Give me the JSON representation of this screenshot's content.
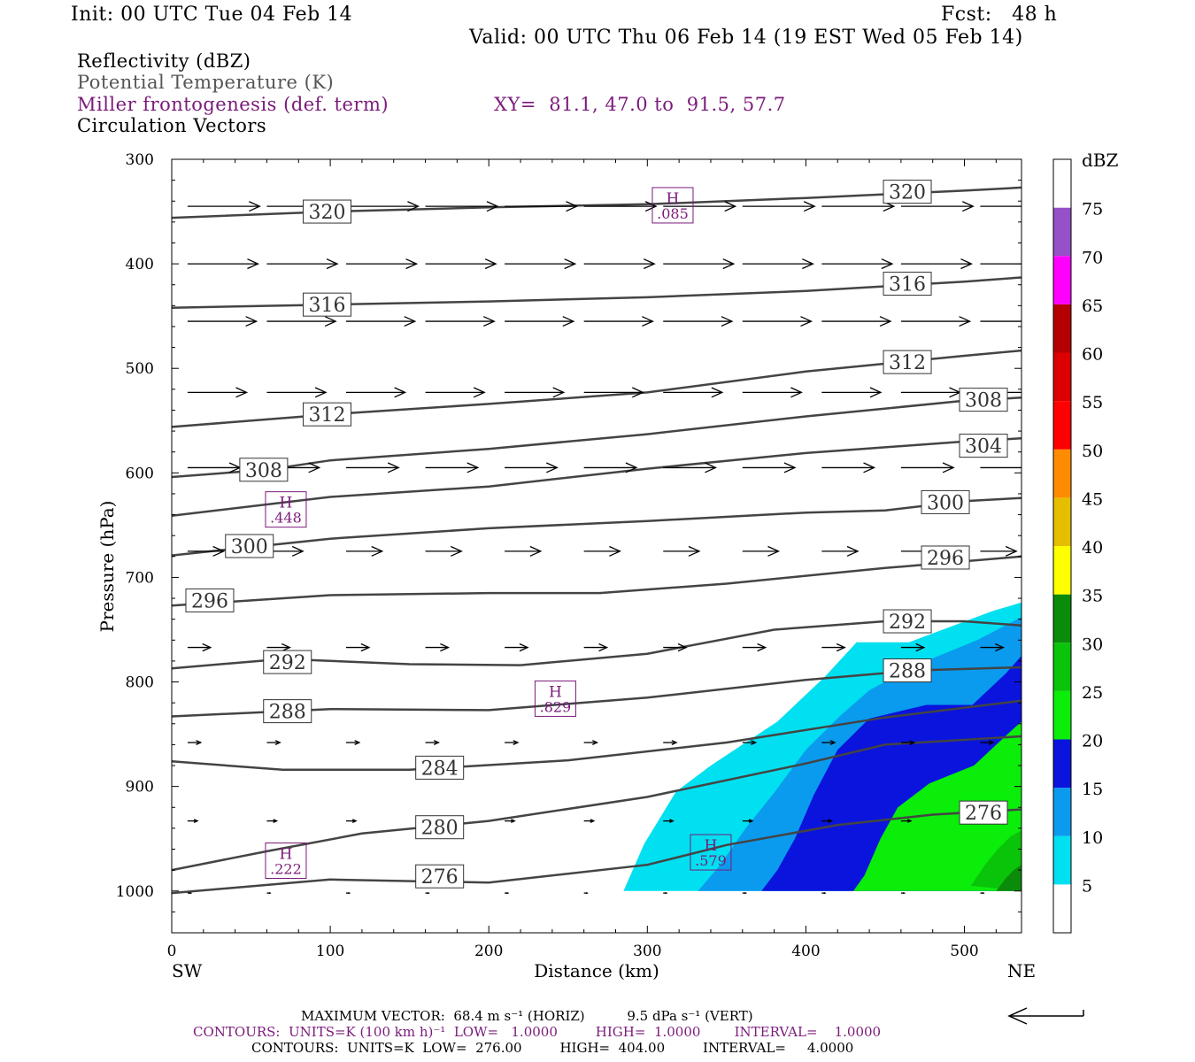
{
  "header": {
    "init": "Init: 00 UTC Tue 04 Feb 14",
    "fcst": "Fcst:   48 h",
    "valid": "Valid: 00 UTC Thu 06 Feb 14 (19 EST Wed 05 Feb 14)",
    "field1": "Reflectivity (dBZ)",
    "field2": "Potential Temperature (K)",
    "field3": "Miller frontogenesis (def. term)",
    "xy": "XY=  81.1, 47.0 to  91.5, 57.7",
    "field4": "Circulation Vectors"
  },
  "footer": {
    "max_vector": "MAXIMUM VECTOR:  68.4 m s⁻¹ (HORIZ)          9.5 dPa s⁻¹ (VERT)",
    "contours1": "CONTOURS:  UNITS=K (100 km h)⁻¹  LOW=   1.0000         HIGH=  1.0000        INTERVAL=    1.0000",
    "contours2": "CONTOURS:  UNITS=K  LOW=  276.00         HIGH=  404.00         INTERVAL=     4.0000"
  },
  "colors": {
    "theta": "#444444",
    "frontogenesis": "#7a1a7a",
    "vector": "#000000"
  },
  "chart_data": {
    "type": "cross-section",
    "xlabel": "Distance (km)",
    "ylabel": "Pressure (hPa)",
    "xlim": [
      0,
      536
    ],
    "ylim": [
      1040,
      300
    ],
    "y_log": false,
    "x_ticks": [
      0,
      100,
      200,
      300,
      400,
      500
    ],
    "y_ticks": [
      300,
      400,
      500,
      600,
      700,
      800,
      900,
      1000
    ],
    "x_end_labels": {
      "left": "SW",
      "right": "NE"
    },
    "colorbar": {
      "title": "dBZ",
      "levels": [
        5,
        10,
        15,
        20,
        25,
        30,
        35,
        40,
        45,
        50,
        55,
        60,
        65,
        70,
        75
      ],
      "colors": [
        "#ffffff",
        "#00e0f0",
        "#0a9bee",
        "#0a14dc",
        "#0aee0a",
        "#0ac40a",
        "#0a8c0a",
        "#ffff00",
        "#e6be00",
        "#ff8c00",
        "#ff0000",
        "#dd0000",
        "#b40000",
        "#ff00ff",
        "#9650c8",
        "#ffffff"
      ]
    },
    "reflectivity_regions": [
      {
        "dbz": 5,
        "points": [
          [
            285,
            1000
          ],
          [
            298,
            955
          ],
          [
            318,
            905
          ],
          [
            340,
            880
          ],
          [
            382,
            838
          ],
          [
            412,
            795
          ],
          [
            432,
            762
          ],
          [
            465,
            762
          ],
          [
            518,
            732
          ],
          [
            536,
            724
          ],
          [
            536,
            1000
          ]
        ]
      },
      {
        "dbz": 10,
        "points": [
          [
            332,
            1000
          ],
          [
            346,
            975
          ],
          [
            362,
            940
          ],
          [
            380,
            906
          ],
          [
            400,
            865
          ],
          [
            422,
            832
          ],
          [
            440,
            808
          ],
          [
            468,
            785
          ],
          [
            508,
            760
          ],
          [
            536,
            738
          ],
          [
            536,
            1000
          ]
        ]
      },
      {
        "dbz": 15,
        "points": [
          [
            372,
            1000
          ],
          [
            382,
            980
          ],
          [
            393,
            950
          ],
          [
            405,
            908
          ],
          [
            420,
            865
          ],
          [
            440,
            835
          ],
          [
            476,
            822
          ],
          [
            505,
            822
          ],
          [
            526,
            792
          ],
          [
            536,
            775
          ],
          [
            536,
            1000
          ]
        ]
      },
      {
        "dbz": 20,
        "points": [
          [
            430,
            1000
          ],
          [
            437,
            985
          ],
          [
            447,
            950
          ],
          [
            458,
            920
          ],
          [
            478,
            897
          ],
          [
            506,
            880
          ],
          [
            530,
            846
          ],
          [
            536,
            838
          ],
          [
            536,
            1000
          ]
        ]
      },
      {
        "dbz": 25,
        "points": [
          [
            504,
            995
          ],
          [
            513,
            975
          ],
          [
            521,
            960
          ],
          [
            529,
            948
          ],
          [
            536,
            942
          ],
          [
            536,
            1000
          ]
        ]
      },
      {
        "dbz": 30,
        "points": [
          [
            520,
            1000
          ],
          [
            526,
            988
          ],
          [
            531,
            980
          ],
          [
            536,
            975
          ],
          [
            536,
            1000
          ]
        ]
      }
    ],
    "theta_contours": [
      {
        "value": 320,
        "points": [
          [
            0,
            356
          ],
          [
            100,
            350
          ],
          [
            200,
            346
          ],
          [
            300,
            343
          ],
          [
            400,
            337
          ],
          [
            500,
            330
          ],
          [
            536,
            327
          ]
        ],
        "labels": [
          [
            98,
            350
          ],
          [
            464,
            331
          ]
        ]
      },
      {
        "value": 316,
        "points": [
          [
            0,
            442
          ],
          [
            100,
            439
          ],
          [
            200,
            436
          ],
          [
            300,
            432
          ],
          [
            400,
            426
          ],
          [
            500,
            417
          ],
          [
            536,
            413
          ]
        ],
        "labels": [
          [
            98,
            439
          ],
          [
            464,
            419
          ]
        ]
      },
      {
        "value": 312,
        "points": [
          [
            0,
            556
          ],
          [
            100,
            544
          ],
          [
            200,
            534
          ],
          [
            300,
            523
          ],
          [
            400,
            503
          ],
          [
            500,
            488
          ],
          [
            536,
            483
          ]
        ],
        "labels": [
          [
            98,
            544
          ],
          [
            464,
            494
          ]
        ]
      },
      {
        "value": 308,
        "points": [
          [
            0,
            604
          ],
          [
            60,
            597
          ],
          [
            100,
            588
          ],
          [
            200,
            577
          ],
          [
            300,
            563
          ],
          [
            400,
            546
          ],
          [
            500,
            531
          ],
          [
            536,
            528
          ]
        ],
        "labels": [
          [
            58,
            597
          ],
          [
            512,
            530
          ]
        ]
      },
      {
        "value": 304,
        "points": [
          [
            0,
            641
          ],
          [
            100,
            623
          ],
          [
            200,
            613
          ],
          [
            300,
            596
          ],
          [
            400,
            581
          ],
          [
            500,
            570
          ],
          [
            536,
            567
          ]
        ],
        "labels": [
          [
            512,
            574
          ]
        ]
      },
      {
        "value": 300,
        "points": [
          [
            0,
            679
          ],
          [
            100,
            663
          ],
          [
            200,
            653
          ],
          [
            300,
            646
          ],
          [
            400,
            638
          ],
          [
            450,
            636
          ],
          [
            500,
            627
          ],
          [
            536,
            624
          ]
        ],
        "labels": [
          [
            49,
            670
          ],
          [
            488,
            628
          ]
        ]
      },
      {
        "value": 296,
        "points": [
          [
            0,
            727
          ],
          [
            100,
            717
          ],
          [
            200,
            715
          ],
          [
            270,
            715
          ],
          [
            350,
            706
          ],
          [
            450,
            691
          ],
          [
            536,
            680
          ]
        ],
        "labels": [
          [
            24,
            722
          ],
          [
            488,
            681
          ]
        ]
      },
      {
        "value": 292,
        "points": [
          [
            0,
            787
          ],
          [
            70,
            778
          ],
          [
            150,
            783
          ],
          [
            220,
            784
          ],
          [
            300,
            773
          ],
          [
            380,
            750
          ],
          [
            450,
            742
          ],
          [
            500,
            742
          ],
          [
            536,
            746
          ]
        ],
        "labels": [
          [
            73,
            781
          ],
          [
            464,
            742
          ]
        ]
      },
      {
        "value": 288,
        "points": [
          [
            0,
            833
          ],
          [
            100,
            826
          ],
          [
            200,
            827
          ],
          [
            300,
            815
          ],
          [
            400,
            798
          ],
          [
            470,
            789
          ],
          [
            536,
            786
          ]
        ],
        "labels": [
          [
            73,
            828
          ],
          [
            464,
            789
          ]
        ]
      },
      {
        "value": 284,
        "points": [
          [
            0,
            876
          ],
          [
            70,
            884
          ],
          [
            150,
            884
          ],
          [
            250,
            875
          ],
          [
            350,
            858
          ],
          [
            450,
            834
          ],
          [
            536,
            818
          ]
        ],
        "labels": [
          [
            169,
            882
          ]
        ]
      },
      {
        "value": 280,
        "points": [
          [
            0,
            980
          ],
          [
            60,
            962
          ],
          [
            120,
            945
          ],
          [
            200,
            933
          ],
          [
            300,
            910
          ],
          [
            400,
            878
          ],
          [
            450,
            860
          ],
          [
            536,
            852
          ]
        ],
        "labels": [
          [
            169,
            939
          ]
        ]
      },
      {
        "value": 276,
        "points": [
          [
            0,
            1002
          ],
          [
            100,
            989
          ],
          [
            200,
            992
          ],
          [
            300,
            975
          ],
          [
            350,
            956
          ],
          [
            420,
            937
          ],
          [
            480,
            927
          ],
          [
            536,
            922
          ]
        ],
        "labels": [
          [
            169,
            986
          ],
          [
            512,
            925
          ]
        ]
      }
    ],
    "frontogenesis_maxima": [
      {
        "label": "H",
        "value": ".085",
        "x": 316,
        "y": 344
      },
      {
        "label": "H",
        "value": ".448",
        "x": 72,
        "y": 635
      },
      {
        "label": "H",
        "value": ".829",
        "x": 242,
        "y": 816
      },
      {
        "label": "H",
        "value": ".579",
        "x": 340,
        "y": 963
      },
      {
        "label": "H",
        "value": ".222",
        "x": 72,
        "y": 971
      }
    ],
    "vector_rows": [
      {
        "p": 345,
        "u": 44,
        "w": 0
      },
      {
        "p": 400,
        "u": 43,
        "w": 0
      },
      {
        "p": 455,
        "u": 42,
        "w": 0
      },
      {
        "p": 523,
        "u": 36,
        "w": 0
      },
      {
        "p": 595,
        "u": 32,
        "w": 0
      },
      {
        "p": 675,
        "u": 22,
        "w": 0
      },
      {
        "p": 767,
        "u": 14,
        "w": 0
      },
      {
        "p": 858,
        "u": 8,
        "w": 0
      },
      {
        "p": 933,
        "u": 6,
        "w": 0
      },
      {
        "p": 1002,
        "u": 2,
        "w": 0
      }
    ],
    "vector_columns_km": [
      10,
      60,
      110,
      160,
      210,
      260,
      310,
      360,
      410,
      460,
      510
    ]
  }
}
